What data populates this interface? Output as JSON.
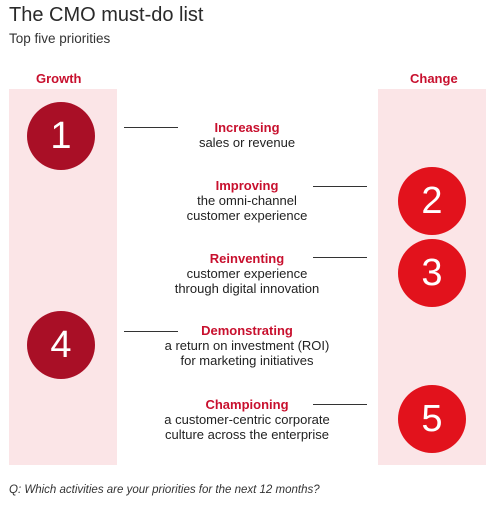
{
  "header": {
    "title": "The CMO must-do list",
    "subtitle": "Top five priorities"
  },
  "columns": {
    "left": "Growth",
    "right": "Change"
  },
  "priorities": [
    {
      "number": "1",
      "heading": "Increasing",
      "line1": "sales or revenue",
      "line2": ""
    },
    {
      "number": "2",
      "heading": "Improving",
      "line1": "the omni-channel",
      "line2": "customer experience"
    },
    {
      "number": "3",
      "heading": "Reinventing",
      "line1": "customer experience",
      "line2": "through digital innovation"
    },
    {
      "number": "4",
      "heading": "Demonstrating",
      "line1": "a return on investment (ROI)",
      "line2": "for marketing initiatives"
    },
    {
      "number": "5",
      "heading": "Championing",
      "line1": "a customer-centric corporate",
      "line2": "culture across the enterprise"
    }
  ],
  "footer": {
    "question": "Q: Which activities are your priorities for the next 12 months?"
  },
  "colors": {
    "accent": "#c8102e",
    "circle_dark": "#a90f26",
    "circle_bright": "#e2121c",
    "band": "#fbe5e7"
  }
}
